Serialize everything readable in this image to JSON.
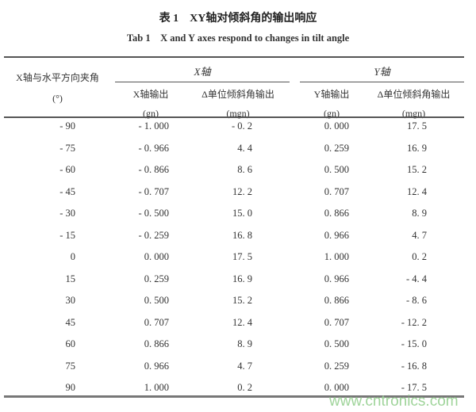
{
  "title": "表 1　XY轴对倾斜角的输出响应",
  "subtitle": "Tab 1　X and Y axes respond to changes in tilt angle",
  "header": {
    "angle_label": "X轴与水平方向夹角",
    "angle_unit": "(°)",
    "x_group": "X轴",
    "y_group": "Y轴",
    "x_output": "X轴输出",
    "x_output_unit": "(gn)",
    "x_delta": "Δ单位倾斜角输出",
    "x_delta_unit": "(mgn)",
    "y_output": "Y轴输出",
    "y_output_unit": "(gn)",
    "y_delta": "Δ单位倾斜角输出",
    "y_delta_unit": "(mgn)"
  },
  "rows": [
    [
      "- 90",
      "- 1. 000",
      "- 0. 2",
      "0. 000",
      "17. 5"
    ],
    [
      "- 75",
      "- 0. 966",
      "4. 4",
      "0. 259",
      "16. 9"
    ],
    [
      "- 60",
      "- 0. 866",
      "8. 6",
      "0. 500",
      "15. 2"
    ],
    [
      "- 45",
      "- 0. 707",
      "12. 2",
      "0. 707",
      "12. 4"
    ],
    [
      "- 30",
      "- 0. 500",
      "15. 0",
      "0. 866",
      "8. 9"
    ],
    [
      "- 15",
      "- 0. 259",
      "16. 8",
      "0. 966",
      "4. 7"
    ],
    [
      "0",
      "0. 000",
      "17. 5",
      "1. 000",
      "0. 2"
    ],
    [
      "15",
      "0. 259",
      "16. 9",
      "0. 966",
      "- 4. 4"
    ],
    [
      "30",
      "0. 500",
      "15. 2",
      "0. 866",
      "- 8. 6"
    ],
    [
      "45",
      "0. 707",
      "12. 4",
      "0. 707",
      "- 12. 2"
    ],
    [
      "60",
      "0. 866",
      "8. 9",
      "0. 500",
      "- 15. 0"
    ],
    [
      "75",
      "0. 966",
      "4. 7",
      "0. 259",
      "- 16. 8"
    ],
    [
      "90",
      "1. 000",
      "0. 2",
      "0. 000",
      "- 17. 5"
    ]
  ],
  "watermark": "www.cntronics.com"
}
